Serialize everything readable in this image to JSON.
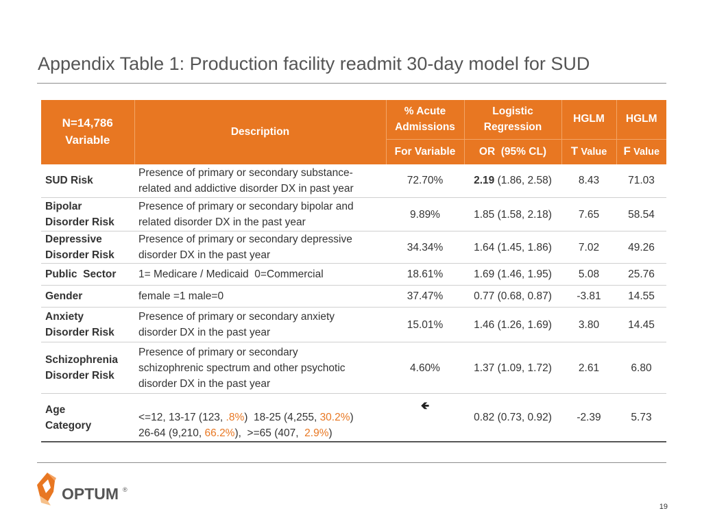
{
  "title": "Appendix Table 1: Production facility readmit 30-day model for SUD",
  "header": {
    "n_line1": "N=14,786",
    "n_line2": "Variable",
    "description": "Description",
    "acute_line1": "% Acute",
    "acute_line2": "Admissions",
    "logistic_line1": "Logistic",
    "logistic_line2": "Regression",
    "hglm1": "HGLM",
    "hglm2": "HGLM",
    "for_variable": "For Variable",
    "or_ci": "OR  (95% CL)",
    "t_letter": "T",
    "f_letter": "F",
    "value_word": "Value"
  },
  "rows": [
    {
      "var1": "SUD Risk",
      "desc1": "Presence of primary or secondary substance-",
      "desc2": "related and addictive disorder DX in past year",
      "pct": "72.70%",
      "or_bold": "2.19",
      "or_rest": " (1.86, 2.58)",
      "t": "8.43",
      "f": "71.03"
    },
    {
      "var1": "Bipolar",
      "var2": "Disorder Risk",
      "desc1": "Presence of primary or secondary bipolar and",
      "desc2": "related disorder DX in the past year",
      "pct": "9.89%",
      "or": "1.85 (1.58, 2.18)",
      "t": "7.65",
      "f": "58.54"
    },
    {
      "var1": "Depressive",
      "var2": "Disorder Risk",
      "desc1": "Presence of primary or secondary depressive",
      "desc2": "disorder DX in the past year",
      "pct": "34.34%",
      "or": "1.64 (1.45, 1.86)",
      "t": "7.02",
      "f": "49.26"
    },
    {
      "var1": "Public  Sector",
      "desc1": "1= Medicare / Medicaid  0=Commercial",
      "pct": "18.61%",
      "or": "1.69 (1.46, 1.95)",
      "t": "5.08",
      "f": "25.76"
    },
    {
      "var1": "Gender",
      "desc1": "female =1 male=0",
      "pct": "37.47%",
      "or": "0.77 (0.68, 0.87)",
      "t": "-3.81",
      "f": "14.55"
    },
    {
      "var1": "Anxiety",
      "var2": "Disorder Risk",
      "desc1": "Presence of primary or secondary anxiety",
      "desc2": "disorder DX in the past year",
      "pct": "15.01%",
      "or": "1.46 (1.26, 1.69)",
      "t": "3.80",
      "f": "14.45"
    },
    {
      "var1": "Schizophrenia",
      "var2": "Disorder Risk",
      "desc1": "Presence of primary or secondary",
      "desc2": "schizophrenic spectrum and other psychotic",
      "desc3": "disorder DX in the past year",
      "pct": "4.60%",
      "or": "1.37 (1.09, 1.72)",
      "t": "2.61",
      "f": "6.80"
    },
    {
      "var1": "Age",
      "var2": "Category",
      "age": {
        "a1": "<=12, 13-17 (123, ",
        "o1": ".8%",
        "a2": ")  18-25 (4,255, ",
        "o2": "30.2%",
        "a3": ")",
        "b1": "26-64 (9,210, ",
        "o3": "66.2%",
        "b2": "),  >=65 (407,  ",
        "o4": "2.9%",
        "b3": ")"
      },
      "arrow": "🡸",
      "or": "0.82 (0.73, 0.92)",
      "t": "-2.39",
      "f": "5.73"
    }
  ],
  "logo_text": "OPTUM",
  "logo_reg": "®",
  "page_number": "19",
  "colors": {
    "accent": "#e87722",
    "text": "#333333",
    "title": "#555555"
  }
}
